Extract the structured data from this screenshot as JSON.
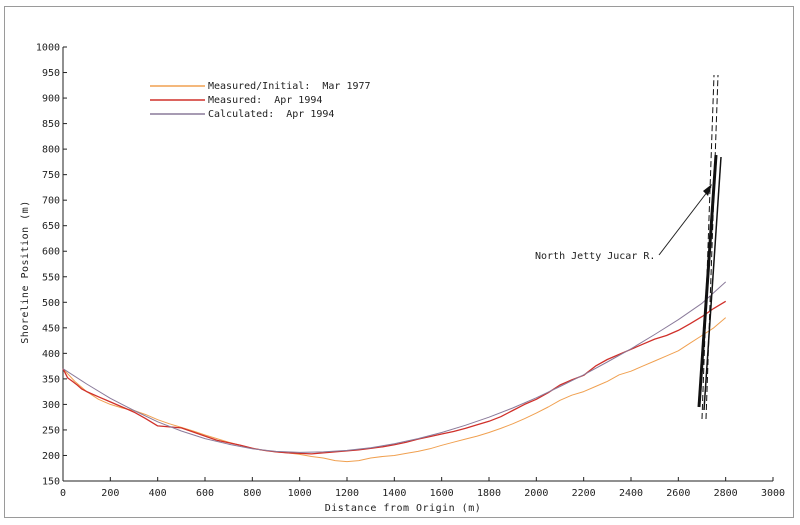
{
  "chart_data": {
    "type": "line",
    "title": "",
    "xlabel": "Distance from Origin (m)",
    "ylabel": "Shoreline Position (m)",
    "xlim": [
      0,
      3000
    ],
    "ylim": [
      150,
      1000
    ],
    "xticks": [
      0,
      200,
      400,
      600,
      800,
      1000,
      1200,
      1400,
      1600,
      1800,
      2000,
      2200,
      2400,
      2600,
      2800,
      3000
    ],
    "yticks": [
      150,
      200,
      250,
      300,
      350,
      400,
      450,
      500,
      550,
      600,
      650,
      700,
      750,
      800,
      850,
      900,
      950,
      1000
    ],
    "grid": false,
    "legend_position": "top-left",
    "series": [
      {
        "name": "Measured/Initial:  Mar 1977",
        "color": "#f0a050",
        "x": [
          0,
          50,
          100,
          150,
          200,
          250,
          300,
          350,
          400,
          450,
          500,
          550,
          600,
          650,
          700,
          750,
          800,
          850,
          900,
          950,
          1000,
          1050,
          1100,
          1150,
          1200,
          1250,
          1300,
          1350,
          1400,
          1450,
          1500,
          1550,
          1600,
          1650,
          1700,
          1750,
          1800,
          1850,
          1900,
          1950,
          2000,
          2050,
          2100,
          2150,
          2200,
          2250,
          2300,
          2350,
          2400,
          2450,
          2500,
          2550,
          2600,
          2650,
          2700,
          2750,
          2800
        ],
        "y": [
          370,
          345,
          325,
          310,
          300,
          293,
          288,
          280,
          270,
          262,
          255,
          248,
          240,
          233,
          226,
          220,
          214,
          210,
          207,
          205,
          202,
          198,
          195,
          190,
          188,
          190,
          195,
          198,
          200,
          204,
          208,
          213,
          220,
          226,
          232,
          238,
          245,
          253,
          262,
          272,
          283,
          295,
          308,
          318,
          325,
          335,
          345,
          358,
          365,
          375,
          385,
          395,
          405,
          420,
          435,
          450,
          470
        ]
      },
      {
        "name": "Measured:  Apr 1994",
        "color": "#d0302a",
        "x": [
          0,
          20,
          40,
          60,
          80,
          100,
          150,
          200,
          250,
          300,
          350,
          400,
          450,
          500,
          550,
          600,
          650,
          700,
          750,
          800,
          850,
          900,
          950,
          1000,
          1050,
          1100,
          1150,
          1200,
          1250,
          1300,
          1350,
          1400,
          1450,
          1500,
          1550,
          1600,
          1650,
          1700,
          1750,
          1800,
          1850,
          1900,
          1950,
          2000,
          2050,
          2100,
          2150,
          2200,
          2250,
          2300,
          2350,
          2400,
          2450,
          2500,
          2550,
          2600,
          2650,
          2700,
          2750,
          2800
        ],
        "y": [
          370,
          352,
          345,
          338,
          330,
          325,
          315,
          305,
          295,
          285,
          272,
          258,
          256,
          254,
          246,
          238,
          230,
          225,
          220,
          214,
          210,
          207,
          205,
          204,
          203,
          205,
          207,
          209,
          211,
          214,
          217,
          221,
          226,
          232,
          237,
          242,
          247,
          253,
          260,
          267,
          276,
          288,
          300,
          310,
          323,
          338,
          348,
          357,
          375,
          388,
          398,
          408,
          418,
          428,
          435,
          445,
          458,
          472,
          488,
          502
        ]
      },
      {
        "name": "Calculated:  Apr 1994",
        "color": "#8a7a9a",
        "x": [
          0,
          100,
          200,
          300,
          400,
          500,
          600,
          700,
          800,
          900,
          1000,
          1100,
          1200,
          1300,
          1400,
          1500,
          1600,
          1700,
          1800,
          1900,
          2000,
          2100,
          2200,
          2300,
          2400,
          2500,
          2600,
          2700,
          2800
        ],
        "y": [
          370,
          340,
          312,
          288,
          266,
          248,
          233,
          222,
          213,
          208,
          206,
          207,
          210,
          215,
          223,
          233,
          245,
          259,
          275,
          293,
          313,
          335,
          358,
          383,
          409,
          437,
          466,
          498,
          540
        ]
      }
    ],
    "annotations": [
      {
        "text": "North Jetty Jucar R."
      }
    ]
  }
}
